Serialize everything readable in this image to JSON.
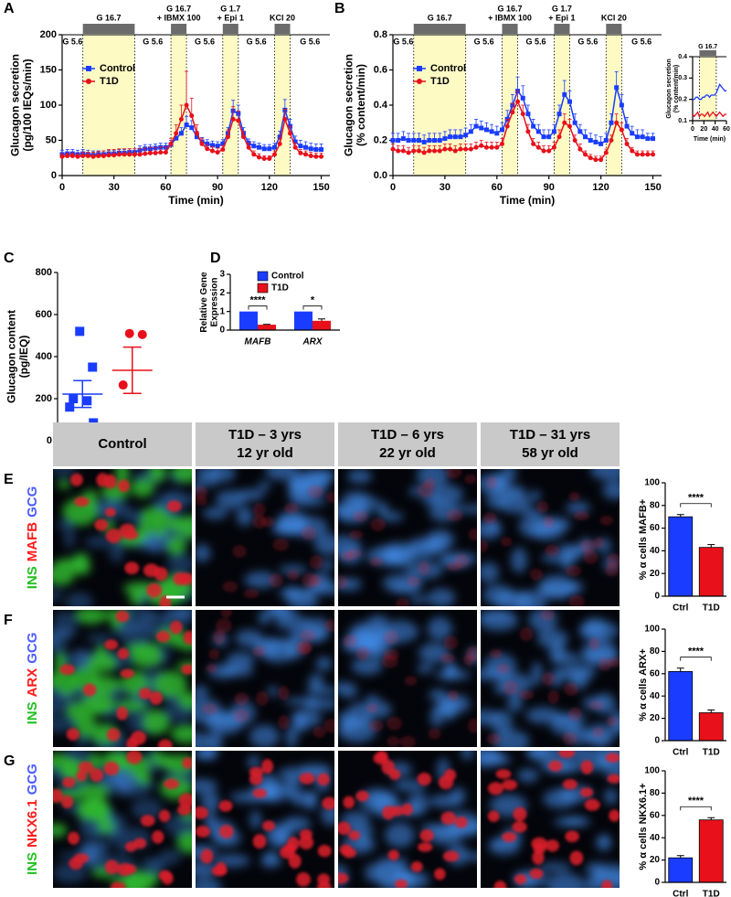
{
  "chart_data": [
    {
      "panel": "A",
      "type": "line",
      "ylabel": [
        "Glucagon secretion",
        "(pg/100 IEQs/min)"
      ],
      "xlabel": "Time (min)",
      "x": [
        0,
        3,
        6,
        9,
        12,
        15,
        18,
        21,
        24,
        27,
        30,
        33,
        36,
        39,
        42,
        45,
        48,
        51,
        54,
        57,
        60,
        63,
        66,
        69,
        72,
        75,
        78,
        81,
        84,
        87,
        90,
        93,
        96,
        99,
        102,
        105,
        108,
        111,
        114,
        117,
        120,
        123,
        126,
        129,
        132,
        135,
        138,
        141,
        144,
        147,
        150
      ],
      "xlim": [
        0,
        155
      ],
      "xticks": [
        0,
        30,
        60,
        90,
        120,
        150
      ],
      "ylim": [
        0,
        200
      ],
      "yticks": [
        0,
        50,
        100,
        150,
        200
      ],
      "periods": [
        {
          "label": [
            "G 16.7"
          ],
          "start": 12,
          "end": 42
        },
        {
          "label": [
            "G 16.7",
            "+ IBMX 100"
          ],
          "start": 63,
          "end": 72
        },
        {
          "label": [
            "G 1.7",
            "+ Epi 1"
          ],
          "start": 93,
          "end": 102
        },
        {
          "label": [
            "KCl 20"
          ],
          "start": 123,
          "end": 132
        }
      ],
      "baseline_label": "G 5.6",
      "legend": "upper left",
      "series": [
        {
          "name": "Control",
          "color": "#1a3cff",
          "marker": "square",
          "values": [
            30,
            31,
            31,
            30,
            31,
            30,
            29,
            30,
            30,
            31,
            31,
            32,
            32,
            33,
            33,
            36,
            38,
            38,
            39,
            40,
            40,
            44,
            53,
            60,
            72,
            68,
            55,
            48,
            45,
            43,
            42,
            45,
            60,
            92,
            88,
            60,
            46,
            42,
            40,
            38,
            38,
            40,
            55,
            93,
            70,
            48,
            42,
            40,
            38,
            37,
            37
          ],
          "errors": [
            6,
            6,
            6,
            6,
            6,
            6,
            6,
            5,
            5,
            5,
            5,
            5,
            5,
            5,
            5,
            6,
            6,
            6,
            6,
            6,
            6,
            6,
            8,
            8,
            12,
            10,
            8,
            6,
            6,
            6,
            6,
            6,
            8,
            15,
            12,
            8,
            6,
            6,
            6,
            6,
            6,
            6,
            8,
            15,
            10,
            8,
            8,
            8,
            8,
            8,
            8
          ]
        },
        {
          "name": "T1D",
          "color": "#e8101a",
          "marker": "circle",
          "values": [
            27,
            28,
            28,
            27,
            28,
            28,
            27,
            28,
            28,
            29,
            29,
            30,
            30,
            30,
            30,
            30,
            31,
            32,
            32,
            33,
            33,
            45,
            60,
            80,
            100,
            85,
            60,
            45,
            38,
            35,
            33,
            37,
            55,
            80,
            78,
            55,
            40,
            30,
            26,
            24,
            24,
            30,
            45,
            80,
            60,
            40,
            32,
            30,
            28,
            27,
            27
          ],
          "errors": [
            4,
            4,
            4,
            4,
            5,
            5,
            6,
            6,
            7,
            8,
            8,
            8,
            8,
            8,
            8,
            8,
            8,
            8,
            8,
            8,
            8,
            8,
            12,
            20,
            48,
            25,
            12,
            8,
            6,
            6,
            6,
            6,
            10,
            18,
            14,
            8,
            6,
            5,
            5,
            4,
            4,
            5,
            8,
            14,
            10,
            6,
            5,
            5,
            5,
            5,
            5
          ]
        }
      ]
    },
    {
      "panel": "B",
      "type": "line",
      "ylabel": [
        "Glucagon secretion",
        "(% content/min)"
      ],
      "xlabel": "Time (min)",
      "x": [
        0,
        3,
        6,
        9,
        12,
        15,
        18,
        21,
        24,
        27,
        30,
        33,
        36,
        39,
        42,
        45,
        48,
        51,
        54,
        57,
        60,
        63,
        66,
        69,
        72,
        75,
        78,
        81,
        84,
        87,
        90,
        93,
        96,
        99,
        102,
        105,
        108,
        111,
        114,
        117,
        120,
        123,
        126,
        129,
        132,
        135,
        138,
        141,
        144,
        147,
        150
      ],
      "xlim": [
        0,
        155
      ],
      "xticks": [
        0,
        30,
        60,
        90,
        120,
        150
      ],
      "ylim": [
        0,
        0.8
      ],
      "yticks": [
        {
          "value": 0,
          "label": "0.0"
        },
        0.2,
        0.4,
        0.6,
        0.8
      ],
      "periods": [
        {
          "label": [
            "G 16.7"
          ],
          "start": 12,
          "end": 42
        },
        {
          "label": [
            "G 16.7",
            "+ IBMX 100"
          ],
          "start": 63,
          "end": 72
        },
        {
          "label": [
            "G 1.7",
            "+ Epi 1"
          ],
          "start": 93,
          "end": 102
        },
        {
          "label": [
            "KCl 20"
          ],
          "start": 123,
          "end": 132
        }
      ],
      "baseline_label": "G 5.6",
      "legend": "upper left",
      "series": [
        {
          "name": "Control",
          "color": "#1a3cff",
          "marker": "square",
          "values": [
            0.2,
            0.2,
            0.21,
            0.2,
            0.2,
            0.2,
            0.19,
            0.2,
            0.2,
            0.2,
            0.21,
            0.22,
            0.22,
            0.22,
            0.23,
            0.25,
            0.28,
            0.27,
            0.26,
            0.25,
            0.24,
            0.26,
            0.32,
            0.4,
            0.48,
            0.44,
            0.35,
            0.28,
            0.25,
            0.22,
            0.22,
            0.25,
            0.35,
            0.46,
            0.42,
            0.3,
            0.25,
            0.22,
            0.2,
            0.19,
            0.18,
            0.2,
            0.3,
            0.5,
            0.4,
            0.28,
            0.24,
            0.22,
            0.22,
            0.21,
            0.21
          ],
          "errors": [
            0.04,
            0.04,
            0.04,
            0.04,
            0.04,
            0.04,
            0.04,
            0.04,
            0.04,
            0.04,
            0.04,
            0.04,
            0.04,
            0.04,
            0.04,
            0.04,
            0.04,
            0.04,
            0.04,
            0.04,
            0.04,
            0.04,
            0.05,
            0.06,
            0.08,
            0.07,
            0.05,
            0.04,
            0.04,
            0.04,
            0.04,
            0.04,
            0.05,
            0.08,
            0.06,
            0.05,
            0.04,
            0.04,
            0.04,
            0.04,
            0.04,
            0.04,
            0.05,
            0.09,
            0.06,
            0.05,
            0.04,
            0.04,
            0.04,
            0.03,
            0.03
          ]
        },
        {
          "name": "T1D",
          "color": "#e8101a",
          "marker": "circle",
          "values": [
            0.15,
            0.14,
            0.14,
            0.13,
            0.14,
            0.14,
            0.13,
            0.14,
            0.14,
            0.14,
            0.15,
            0.15,
            0.14,
            0.15,
            0.15,
            0.15,
            0.16,
            0.17,
            0.16,
            0.16,
            0.16,
            0.18,
            0.28,
            0.36,
            0.42,
            0.35,
            0.25,
            0.18,
            0.16,
            0.14,
            0.14,
            0.16,
            0.22,
            0.3,
            0.28,
            0.2,
            0.15,
            0.12,
            0.1,
            0.09,
            0.09,
            0.13,
            0.2,
            0.3,
            0.26,
            0.18,
            0.14,
            0.12,
            0.12,
            0.12,
            0.12
          ],
          "errors": [
            0.03,
            0.03,
            0.03,
            0.03,
            0.03,
            0.03,
            0.03,
            0.03,
            0.03,
            0.03,
            0.03,
            0.03,
            0.03,
            0.03,
            0.03,
            0.03,
            0.03,
            0.03,
            0.03,
            0.03,
            0.03,
            0.03,
            0.04,
            0.05,
            0.06,
            0.05,
            0.04,
            0.03,
            0.03,
            0.03,
            0.03,
            0.03,
            0.04,
            0.05,
            0.04,
            0.03,
            0.03,
            0.02,
            0.02,
            0.02,
            0.02,
            0.02,
            0.03,
            0.05,
            0.04,
            0.03,
            0.02,
            0.02,
            0.02,
            0.02,
            0.02
          ]
        }
      ]
    },
    {
      "type": "line",
      "ylabel": [
        "Glucagon secretion",
        "(% content/min)"
      ],
      "xlabel": "Time (min)",
      "x": [
        0,
        3,
        6,
        9,
        12,
        15,
        18,
        21,
        24,
        27,
        30,
        33,
        36,
        39,
        42,
        45,
        48,
        51,
        54,
        57,
        60
      ],
      "xlim": [
        0,
        60
      ],
      "xticks": [
        0,
        20,
        40,
        60
      ],
      "ylim": [
        0.1,
        0.4
      ],
      "yticks": [
        0.1,
        0.2,
        0.3,
        0.4
      ],
      "periods": [
        {
          "label": [
            "G 16.7"
          ],
          "start": 12,
          "end": 42
        }
      ],
      "baseline_label": "G 5.6",
      "series": [
        {
          "color": "#1a3cff",
          "values": [
            0.2,
            0.2,
            0.21,
            0.21,
            0.2,
            0.2,
            0.21,
            0.21,
            0.22,
            0.22,
            0.21,
            0.22,
            0.22,
            0.22,
            0.23,
            0.25,
            0.27,
            0.26,
            0.25,
            0.24,
            0.24
          ]
        },
        {
          "color": "#e8101a",
          "values": [
            0.13,
            0.12,
            0.13,
            0.14,
            0.12,
            0.13,
            0.13,
            0.12,
            0.13,
            0.14,
            0.12,
            0.13,
            0.14,
            0.13,
            0.12,
            0.13,
            0.14,
            0.13,
            0.12,
            0.13,
            0.13
          ]
        }
      ]
    },
    {
      "panel": "C",
      "type": "dot",
      "ylabel": [
        "Glucagon content",
        "(pg/IEQ)"
      ],
      "ylim": [
        0,
        800
      ],
      "yticks": [
        0,
        200,
        400,
        600,
        800
      ],
      "series": [
        {
          "name": "Control",
          "color": "#1a3cff",
          "marker": "square",
          "values": [
            520,
            350,
            200,
            190,
            160,
            85,
            50
          ],
          "mean": 222,
          "sem": 64
        },
        {
          "name": "T1D",
          "color": "#e8101a",
          "marker": "circle",
          "values": [
            510,
            505,
            265,
            60
          ],
          "mean": 335,
          "sem": 110
        }
      ]
    },
    {
      "panel": "D",
      "type": "bar",
      "ylabel": [
        "Relative Gene",
        "Expression"
      ],
      "categories": [
        "MAFB",
        "ARX"
      ],
      "category_style": "italic",
      "ylim": [
        0,
        3
      ],
      "yticks": [
        0,
        1,
        2,
        3
      ],
      "legend": "upper right",
      "series": [
        {
          "name": "Control",
          "color": "#1a3cff",
          "values": [
            1,
            1
          ]
        },
        {
          "name": "T1D",
          "color": "#e8101a",
          "values": [
            0.29,
            0.5
          ],
          "errors": [
            0.02,
            0.1
          ]
        }
      ],
      "significance": [
        "****",
        "*"
      ]
    },
    {
      "type": "bar",
      "ylabel": [
        "% α cells MAFB+"
      ],
      "categories": [
        "Ctrl",
        "T1D"
      ],
      "values": [
        70,
        43
      ],
      "errors": [
        2,
        2.5
      ],
      "colors": [
        "#1a3cff",
        "#e8101a"
      ],
      "ylim": [
        0,
        100
      ],
      "yticks": [
        0,
        20,
        40,
        60,
        80,
        100
      ],
      "significance": "****"
    },
    {
      "type": "bar",
      "ylabel": [
        "% α cells ARX+"
      ],
      "categories": [
        "Ctrl",
        "T1D"
      ],
      "values": [
        62,
        25
      ],
      "errors": [
        3,
        2.5
      ],
      "colors": [
        "#1a3cff",
        "#e8101a"
      ],
      "ylim": [
        0,
        100
      ],
      "yticks": [
        0,
        20,
        40,
        60,
        80,
        100
      ],
      "significance": "****"
    },
    {
      "type": "bar",
      "ylabel": [
        "% α cells NKX6.1+"
      ],
      "categories": [
        "Ctrl",
        "T1D"
      ],
      "values": [
        22,
        56
      ],
      "errors": [
        2,
        2
      ],
      "colors": [
        "#1a3cff",
        "#e8101a"
      ],
      "ylim": [
        0,
        100
      ],
      "yticks": [
        0,
        20,
        40,
        60,
        80,
        100
      ],
      "significance": "****"
    }
  ],
  "figure": {
    "columns": [
      [
        "Control"
      ],
      [
        "T1D – 3 yrs",
        "12 yr old"
      ],
      [
        "T1D – 6 yrs",
        "22 yr old"
      ],
      [
        "T1D – 31 yrs",
        "58 yr old"
      ]
    ],
    "rows": [
      {
        "panel": "E",
        "stain": [
          {
            "text": "INS",
            "color": "#22c022"
          },
          {
            "text": "MAFB",
            "color": "#ff1a1a"
          },
          {
            "text": "GCG",
            "color": "#4a5cff"
          }
        ]
      },
      {
        "panel": "F",
        "stain": [
          {
            "text": "INS",
            "color": "#22c022"
          },
          {
            "text": "ARX",
            "color": "#ff1a1a"
          },
          {
            "text": "GCG",
            "color": "#4a5cff"
          }
        ]
      },
      {
        "panel": "G",
        "stain": [
          {
            "text": "INS",
            "color": "#22c022"
          },
          {
            "text": "NKX6.1",
            "color": "#ff1a1a"
          },
          {
            "text": "GCG",
            "color": "#4a5cff"
          }
        ]
      }
    ]
  }
}
